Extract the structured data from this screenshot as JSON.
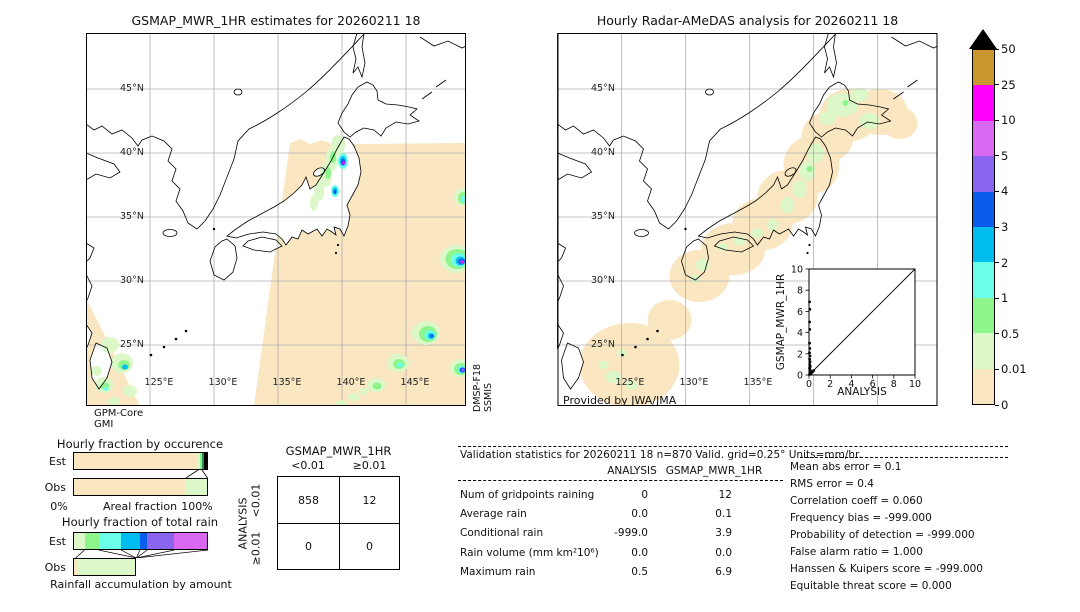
{
  "chart_data": {
    "units": "mm/hr",
    "left_map": {
      "type": "map",
      "title": "GSMAP_MWR_1HR estimates for 20260211 18",
      "lat_ticks": [
        "45°N",
        "40°N",
        "35°N",
        "30°N",
        "25°N"
      ],
      "lon_ticks": [
        "125°E",
        "130°E",
        "135°E",
        "140°E",
        "145°E"
      ],
      "sensor_labels": [
        "GPM-Core",
        "GMI"
      ],
      "swath_label_lines": [
        "DMSP-F18",
        "SSMIS"
      ],
      "description": "Microwave radiometer swath coverage (pale tan) over the western Pacific; rain cells along NW Honshu coast and a SE rain band; second swath near Taiwan"
    },
    "right_map": {
      "type": "map",
      "title": "Hourly Radar-AMeDAS analysis for 20260211 18",
      "lat_ticks": [
        "45°N",
        "40°N",
        "35°N",
        "30°N",
        "25°N"
      ],
      "lon_ticks": [
        "125°E",
        "130°E",
        "135°E"
      ],
      "credit": "Provided by JWA/JMA",
      "description": "Radar-AMeDAS coverage band (pale tan) along the Japanese archipelago with light rain patches (0.01-0.5 mm/hr) over land"
    },
    "colorbar": {
      "tick_labels_top_to_bottom": [
        "50",
        "25",
        "10",
        "5",
        "4",
        "3",
        "2",
        "1",
        "0.5",
        "0.01",
        "0"
      ],
      "segment_colors_top_to_bottom": [
        "#c9962f",
        "#ff00ff",
        "#d969f0",
        "#8a66f0",
        "#0b5ced",
        "#00bdf0",
        "#6cffe8",
        "#8ef58c",
        "#dcf8c8",
        "#fae6c0"
      ],
      "over_color": "#000000"
    },
    "occurrence_bars": {
      "type": "bar",
      "title": "Hourly fraction by occurence",
      "rows": [
        "Est",
        "Obs"
      ],
      "axis": {
        "left": "0%",
        "label": "Areal fraction",
        "right": "100%"
      },
      "est_segments": [
        {
          "color": "#fae6c0",
          "pct": 92.6
        },
        {
          "color": "#dcf8c8",
          "pct": 2.2
        },
        {
          "color": "#8ef58c",
          "pct": 1.4
        },
        {
          "color": "#2e8b57",
          "pct": 1.3
        },
        {
          "color": "#000000",
          "pct": 2.5
        }
      ],
      "obs_segments": [
        {
          "color": "#fae6c0",
          "pct": 83.7
        },
        {
          "color": "#dcf8c8",
          "pct": 16.3
        }
      ]
    },
    "rain_fraction_bars": {
      "type": "bar",
      "title": "Hourly fraction of total rain",
      "rows": [
        "Est",
        "Obs"
      ],
      "caption": "Rainfall accumulation by amount",
      "est_segments": [
        {
          "color": "#dcf8c8",
          "pct": 8.5
        },
        {
          "color": "#8ef58c",
          "pct": 10.5
        },
        {
          "color": "#6cffe8",
          "pct": 16.5
        },
        {
          "color": "#00bdf0",
          "pct": 14.0
        },
        {
          "color": "#0b5ced",
          "pct": 5.5
        },
        {
          "color": "#8a66f0",
          "pct": 20.0
        },
        {
          "color": "#d969f0",
          "pct": 25.0
        }
      ],
      "obs_segments": [
        {
          "color": "#fae6c0",
          "pct": 2.0
        },
        {
          "color": "#dcf8c8",
          "pct": 45.0
        }
      ],
      "obs_total_pct": 47
    },
    "contingency_table": {
      "col_group": "GSMAP_MWR_1HR",
      "row_group": "ANALYSIS",
      "col_labels": [
        "<0.01",
        "≥0.01"
      ],
      "row_labels": [
        "<0.01",
        "≥0.01"
      ],
      "values": [
        [
          "858",
          "12"
        ],
        [
          "0",
          "0"
        ]
      ]
    },
    "scatter_inset": {
      "type": "scatter",
      "xlabel": "ANALYSIS",
      "ylabel": "GSMAP_MWR_1HR",
      "xlim": [
        0,
        10
      ],
      "ylim": [
        0,
        10
      ],
      "tick_labels": [
        "0",
        "2",
        "4",
        "6",
        "8",
        "10"
      ],
      "identity_line": true,
      "points": [
        [
          0.05,
          0.05
        ],
        [
          0.1,
          0.12
        ],
        [
          0.18,
          0.08
        ],
        [
          0.08,
          0.2
        ],
        [
          0.22,
          0.18
        ],
        [
          0.3,
          0.28
        ],
        [
          0.15,
          0.3
        ],
        [
          0.38,
          0.35
        ],
        [
          0.45,
          0.42
        ],
        [
          0.1,
          0.5
        ],
        [
          0.05,
          0.65
        ],
        [
          0.12,
          0.8
        ],
        [
          0.07,
          1.0
        ],
        [
          0.1,
          1.25
        ],
        [
          0.06,
          1.5
        ],
        [
          0.1,
          1.8
        ],
        [
          0.05,
          2.1
        ],
        [
          0.08,
          2.5
        ],
        [
          0.05,
          3.0
        ],
        [
          0.07,
          4.3
        ],
        [
          0.05,
          5.0
        ],
        [
          0.08,
          6.2
        ],
        [
          0.05,
          6.9
        ]
      ]
    },
    "validation_stats": {
      "type": "table",
      "header": "Validation statistics for 20260211 18  n=870 Valid. grid=0.25° Units=mm/hr.",
      "columns": [
        "ANALYSIS",
        "GSMAP_MWR_1HR"
      ],
      "rows": [
        {
          "label": "Num of gridpoints raining",
          "analysis": "0",
          "gsmap": "12"
        },
        {
          "label": "Average rain",
          "analysis": "0.0",
          "gsmap": "0.1"
        },
        {
          "label": "Conditional rain",
          "analysis": "-999.0",
          "gsmap": "3.9"
        },
        {
          "label": "Rain volume (mm km²10⁶)",
          "analysis": "0.0",
          "gsmap": "0.0"
        },
        {
          "label": "Maximum rain",
          "analysis": "0.5",
          "gsmap": "6.9"
        }
      ],
      "scores": [
        {
          "label": "Mean abs error",
          "value": "0.1"
        },
        {
          "label": "RMS error",
          "value": "0.4"
        },
        {
          "label": "Correlation coeff",
          "value": "0.060"
        },
        {
          "label": "Frequency bias",
          "value": "-999.000"
        },
        {
          "label": "Probability of detection",
          "value": "-999.000"
        },
        {
          "label": "False alarm ratio",
          "value": "1.000"
        },
        {
          "label": "Hanssen & Kuipers score",
          "value": "-999.000"
        },
        {
          "label": "Equitable threat score",
          "value": "0.000"
        }
      ]
    }
  }
}
